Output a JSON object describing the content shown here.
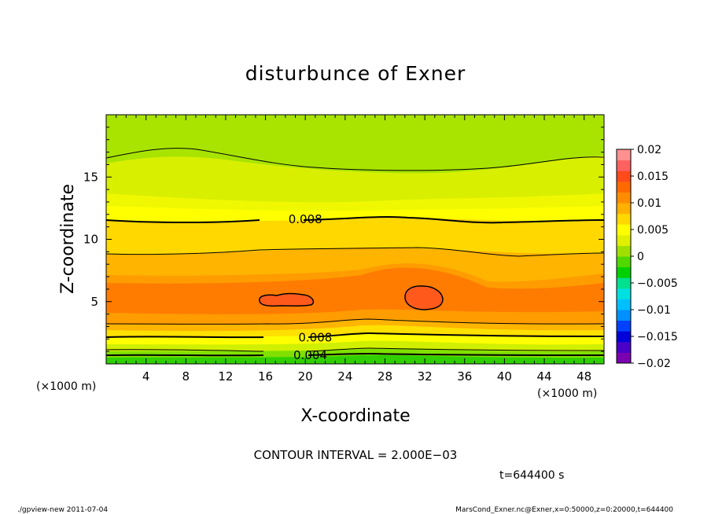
{
  "chart_data": {
    "type": "heatmap",
    "title": "disturbunce of Exner",
    "xlabel": "X-coordinate",
    "ylabel": "Z-coordinate",
    "x_unit": "(×1000 m)",
    "z_unit": "(×1000 m)",
    "xlim": [
      0,
      50
    ],
    "ylim": [
      0,
      20
    ],
    "x_ticks": [
      "4",
      "8",
      "12",
      "16",
      "20",
      "24",
      "28",
      "32",
      "36",
      "40",
      "44",
      "48"
    ],
    "y_ticks": [
      "5",
      "10",
      "15"
    ],
    "colorbar": {
      "min": -0.02,
      "max": 0.02,
      "labels": [
        "0.02",
        "0.015",
        "0.01",
        "0.005",
        "0",
        "−0.005",
        "−0.01",
        "−0.015",
        "−0.02"
      ],
      "colors": [
        "#7a00b0",
        "#4a00c8",
        "#0000d8",
        "#0040ff",
        "#0090ff",
        "#00c0ff",
        "#00e0e0",
        "#00e090",
        "#00d000",
        "#50d800",
        "#a0e000",
        "#e0f000",
        "#ffff00",
        "#ffd800",
        "#ffb000",
        "#ff8c00",
        "#ff6a00",
        "#ff4a1c",
        "#ff6060",
        "#ff9090"
      ]
    },
    "contour_labels": [
      {
        "text": "0.008",
        "x": 20,
        "z": 11.6
      },
      {
        "text": "0.008",
        "x": 21,
        "z": 2.1
      },
      {
        "text": "0.004",
        "x": 20.5,
        "z": 0.7
      }
    ],
    "closed_contours": [
      {
        "x": 18.5,
        "z": 5.1
      },
      {
        "x": 31.8,
        "z": 5.3
      }
    ],
    "contour_interval_text": "CONTOUR INTERVAL = 2.000E−03",
    "time_text": "t=644400 s"
  },
  "footer": {
    "left": "./gpview-new  2011-07-04",
    "right": "MarsCond_Exner.nc@Exner,x=0:50000,z=0:20000,t=644400"
  }
}
